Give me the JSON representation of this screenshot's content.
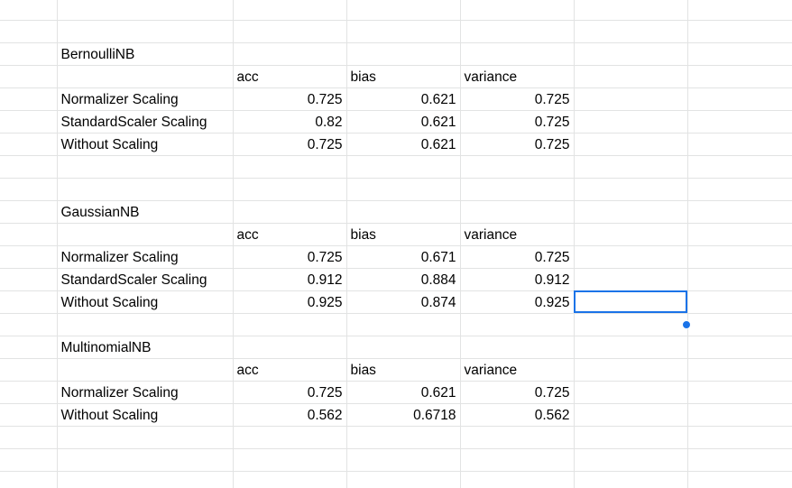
{
  "colors": {
    "model_title": "#e8211c",
    "metric_header": "#e91ec3",
    "label_dark": "#1c4fa5",
    "label_light": "#4470c6",
    "selection": "#1a73e8",
    "gridline": "#e2e3e3"
  },
  "headers": {
    "acc": "acc",
    "bias": "bias",
    "variance": "variance"
  },
  "bernoulli": {
    "title": "BernoulliNB",
    "rows": [
      {
        "label": "Normalizer Scaling",
        "acc": "0.725",
        "bias": "0.621",
        "variance": "0.725"
      },
      {
        "label": "StandardScaler Scaling",
        "acc": "0.82",
        "bias": "0.621",
        "variance": "0.725"
      },
      {
        "label": "Without Scaling",
        "acc": "0.725",
        "bias": "0.621",
        "variance": "0.725"
      }
    ]
  },
  "gaussian": {
    "title": "GaussianNB",
    "rows": [
      {
        "label": "Normalizer Scaling",
        "acc": "0.725",
        "bias": "0.671",
        "variance": "0.725"
      },
      {
        "label": "StandardScaler Scaling",
        "acc": "0.912",
        "bias": "0.884",
        "variance": "0.912"
      },
      {
        "label": "Without Scaling",
        "acc": "0.925",
        "bias": "0.874",
        "variance": "0.925"
      }
    ]
  },
  "multinomial": {
    "title": "MultinomialNB",
    "rows": [
      {
        "label": "Normalizer Scaling",
        "acc": "0.725",
        "bias": "0.621",
        "variance": "0.725"
      },
      {
        "label": "Without Scaling",
        "acc": "0.562",
        "bias": "0.6718",
        "variance": "0.562"
      }
    ]
  }
}
